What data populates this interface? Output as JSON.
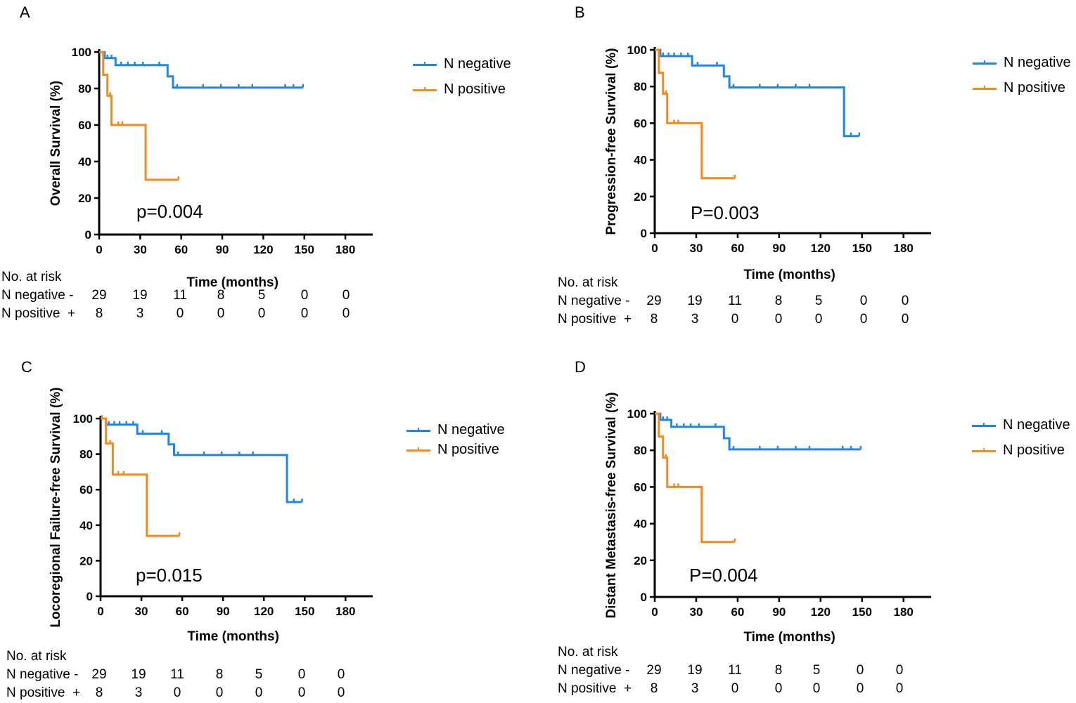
{
  "colors": {
    "n_negative": "#1f87e8",
    "n_positive": "#f28a1c",
    "axis": "#000000"
  },
  "shared_axis": {
    "xlabel": "Time (months)",
    "x_ticks": [
      "0",
      "30",
      "60",
      "90",
      "120",
      "150",
      "180"
    ],
    "y_ticks": [
      "0",
      "20",
      "40",
      "60",
      "80",
      "100"
    ],
    "xlim": [
      0,
      200
    ],
    "ylim": [
      0,
      100
    ]
  },
  "risk_table": {
    "title": "No. at risk",
    "rows": [
      {
        "label": "N negative -",
        "values": [
          "29",
          "19",
          "11",
          "8",
          "5",
          "0",
          "0"
        ]
      },
      {
        "label": "N positive  +",
        "values": [
          "8",
          "3",
          "0",
          "0",
          "0",
          "0",
          "0"
        ]
      }
    ]
  },
  "legend": {
    "neg": "N negative",
    "pos": "N positive"
  },
  "panels": [
    {
      "letter": "A",
      "ylabel": "Overall Survival  (%)",
      "pvalue": "p=0.004"
    },
    {
      "letter": "B",
      "ylabel": "Progression-free Survival (%)",
      "pvalue": "P=0.003"
    },
    {
      "letter": "C",
      "ylabel": "Locoregional Failure-free Survival (%)",
      "pvalue": "p=0.015"
    },
    {
      "letter": "D",
      "ylabel": "Distant Metastasis-free Survival (%)",
      "pvalue": "P=0.004"
    }
  ],
  "chart_data": [
    {
      "type": "line",
      "title": "A",
      "xlabel": "Time (months)",
      "ylabel": "Overall Survival  (%)",
      "xlim": [
        0,
        200
      ],
      "ylim": [
        0,
        100
      ],
      "series": [
        {
          "name": "N negative",
          "steps": [
            [
              0,
              100
            ],
            [
              4,
              100
            ],
            [
              4,
              96.6
            ],
            [
              12,
              96.6
            ],
            [
              12,
              92.8
            ],
            [
              50,
              92.8
            ],
            [
              50,
              86.6
            ],
            [
              54,
              86.6
            ],
            [
              54,
              80.5
            ],
            [
              149,
              80.5
            ]
          ],
          "censor": [
            [
              6,
              96.6
            ],
            [
              9,
              96.6
            ],
            [
              16,
              92.8
            ],
            [
              21,
              92.8
            ],
            [
              26,
              92.8
            ],
            [
              32,
              92.8
            ],
            [
              44,
              92.8
            ],
            [
              57,
              80.5
            ],
            [
              76,
              80.5
            ],
            [
              89,
              80.5
            ],
            [
              102,
              80.5
            ],
            [
              112,
              80.5
            ],
            [
              136,
              80.5
            ],
            [
              142,
              80.5
            ],
            [
              149,
              80.5
            ]
          ]
        },
        {
          "name": "N positive",
          "steps": [
            [
              0,
              100
            ],
            [
              3,
              100
            ],
            [
              3,
              87.5
            ],
            [
              6,
              87.5
            ],
            [
              6,
              76
            ],
            [
              9,
              76
            ],
            [
              9,
              60
            ],
            [
              34,
              60
            ],
            [
              34,
              30
            ],
            [
              58,
              30
            ]
          ],
          "censor": [
            [
              8,
              76
            ],
            [
              14,
              60
            ],
            [
              17,
              60
            ],
            [
              58,
              30
            ]
          ]
        }
      ]
    },
    {
      "type": "line",
      "title": "B",
      "xlabel": "Time (months)",
      "ylabel": "Progression-free Survival (%)",
      "xlim": [
        0,
        200
      ],
      "ylim": [
        0,
        100
      ],
      "series": [
        {
          "name": "N negative",
          "steps": [
            [
              0,
              100
            ],
            [
              4,
              100
            ],
            [
              4,
              96.6
            ],
            [
              27,
              96.6
            ],
            [
              27,
              91.5
            ],
            [
              50,
              91.5
            ],
            [
              50,
              85.5
            ],
            [
              54,
              85.5
            ],
            [
              54,
              79.5
            ],
            [
              137,
              79.5
            ],
            [
              137,
              53
            ],
            [
              148,
              53
            ]
          ],
          "censor": [
            [
              6,
              96.6
            ],
            [
              10,
              96.6
            ],
            [
              14,
              96.6
            ],
            [
              19,
              96.6
            ],
            [
              24,
              96.6
            ],
            [
              31,
              91.5
            ],
            [
              45,
              91.5
            ],
            [
              57,
              79.5
            ],
            [
              76,
              79.5
            ],
            [
              89,
              79.5
            ],
            [
              102,
              79.5
            ],
            [
              112,
              79.5
            ],
            [
              142,
              53
            ],
            [
              148,
              53
            ]
          ]
        },
        {
          "name": "N positive",
          "steps": [
            [
              0,
              100
            ],
            [
              3,
              100
            ],
            [
              3,
              87.5
            ],
            [
              6,
              87.5
            ],
            [
              6,
              76
            ],
            [
              9,
              76
            ],
            [
              9,
              60
            ],
            [
              34,
              60
            ],
            [
              34,
              30
            ],
            [
              58,
              30
            ]
          ],
          "censor": [
            [
              8,
              76
            ],
            [
              14,
              60
            ],
            [
              17,
              60
            ],
            [
              58,
              30
            ]
          ]
        }
      ]
    },
    {
      "type": "line",
      "title": "C",
      "xlabel": "Time (months)",
      "ylabel": "Locoregional Failure-free Survival (%)",
      "xlim": [
        0,
        200
      ],
      "ylim": [
        0,
        100
      ],
      "series": [
        {
          "name": "N negative",
          "steps": [
            [
              0,
              100
            ],
            [
              4,
              100
            ],
            [
              4,
              96.6
            ],
            [
              27,
              96.6
            ],
            [
              27,
              91.5
            ],
            [
              50,
              91.5
            ],
            [
              50,
              85.5
            ],
            [
              54,
              85.5
            ],
            [
              54,
              79.5
            ],
            [
              137,
              79.5
            ],
            [
              137,
              53
            ],
            [
              148,
              53
            ]
          ],
          "censor": [
            [
              6,
              96.6
            ],
            [
              10,
              96.6
            ],
            [
              14,
              96.6
            ],
            [
              19,
              96.6
            ],
            [
              24,
              96.6
            ],
            [
              31,
              91.5
            ],
            [
              45,
              91.5
            ],
            [
              57,
              79.5
            ],
            [
              76,
              79.5
            ],
            [
              89,
              79.5
            ],
            [
              102,
              79.5
            ],
            [
              112,
              79.5
            ],
            [
              142,
              53
            ],
            [
              148,
              53
            ]
          ]
        },
        {
          "name": "N positive",
          "steps": [
            [
              0,
              100
            ],
            [
              4,
              100
            ],
            [
              4,
              86
            ],
            [
              9,
              86
            ],
            [
              9,
              68.5
            ],
            [
              34,
              68.5
            ],
            [
              34,
              34
            ],
            [
              58,
              34
            ]
          ],
          "censor": [
            [
              1,
              100
            ],
            [
              7,
              86
            ],
            [
              13,
              68.5
            ],
            [
              17,
              68.5
            ],
            [
              58,
              34
            ]
          ]
        }
      ]
    },
    {
      "type": "line",
      "title": "D",
      "xlabel": "Time (months)",
      "ylabel": "Distant Metastasis-free Survival (%)",
      "xlim": [
        0,
        200
      ],
      "ylim": [
        0,
        100
      ],
      "series": [
        {
          "name": "N negative",
          "steps": [
            [
              0,
              100
            ],
            [
              4,
              100
            ],
            [
              4,
              96.6
            ],
            [
              12,
              96.6
            ],
            [
              12,
              92.8
            ],
            [
              50,
              92.8
            ],
            [
              50,
              86.6
            ],
            [
              54,
              86.6
            ],
            [
              54,
              80.5
            ],
            [
              149,
              80.5
            ]
          ],
          "censor": [
            [
              6,
              96.6
            ],
            [
              9,
              96.6
            ],
            [
              16,
              92.8
            ],
            [
              21,
              92.8
            ],
            [
              26,
              92.8
            ],
            [
              32,
              92.8
            ],
            [
              44,
              92.8
            ],
            [
              57,
              80.5
            ],
            [
              76,
              80.5
            ],
            [
              89,
              80.5
            ],
            [
              102,
              80.5
            ],
            [
              112,
              80.5
            ],
            [
              136,
              80.5
            ],
            [
              142,
              80.5
            ],
            [
              149,
              80.5
            ]
          ]
        },
        {
          "name": "N positive",
          "steps": [
            [
              0,
              100
            ],
            [
              3,
              100
            ],
            [
              3,
              87.5
            ],
            [
              6,
              87.5
            ],
            [
              6,
              76
            ],
            [
              9,
              76
            ],
            [
              9,
              60
            ],
            [
              34,
              60
            ],
            [
              34,
              30
            ],
            [
              58,
              30
            ]
          ],
          "censor": [
            [
              8,
              76
            ],
            [
              14,
              60
            ],
            [
              17,
              60
            ],
            [
              58,
              30
            ]
          ]
        }
      ]
    }
  ]
}
